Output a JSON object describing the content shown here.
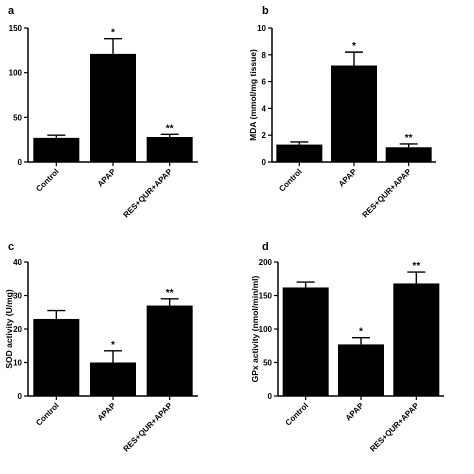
{
  "chart_data": [
    {
      "panel": "a",
      "type": "bar",
      "categories": [
        "Control",
        "APAP",
        "RES+QUR+APAP"
      ],
      "values": [
        27,
        121,
        28
      ],
      "errors": [
        3,
        17,
        3
      ],
      "significance": [
        "",
        "*",
        "**"
      ],
      "ylabel": "",
      "ylim": [
        0,
        150
      ],
      "yticks": [
        "0",
        "50",
        "100",
        "150"
      ]
    },
    {
      "panel": "b",
      "type": "bar",
      "categories": [
        "Control",
        "APAP",
        "RES+QUR+APAP"
      ],
      "values": [
        1.3,
        7.2,
        1.1
      ],
      "errors": [
        0.2,
        1.0,
        0.25
      ],
      "significance": [
        "",
        "*",
        "**"
      ],
      "ylabel": "MDA (mmol/mg tissue)",
      "ylim": [
        0,
        10
      ],
      "yticks": [
        "0",
        "2",
        "4",
        "6",
        "8",
        "10"
      ]
    },
    {
      "panel": "c",
      "type": "bar",
      "categories": [
        "Control",
        "APAP",
        "RES+QUR+APAP"
      ],
      "values": [
        23,
        10,
        27
      ],
      "errors": [
        2.5,
        3.5,
        2
      ],
      "significance": [
        "",
        "*",
        "**"
      ],
      "ylabel": "SOD activity (U/mg)",
      "ylim": [
        0,
        40
      ],
      "yticks": [
        "0",
        "10",
        "20",
        "30",
        "40"
      ]
    },
    {
      "panel": "d",
      "type": "bar",
      "categories": [
        "Control",
        "APAP",
        "RES+QUR+APAP"
      ],
      "values": [
        162,
        77,
        168
      ],
      "errors": [
        8,
        10,
        17
      ],
      "significance": [
        "",
        "*",
        "**"
      ],
      "ylabel": "GPx activity (nmol/min/ml)",
      "ylim": [
        0,
        200
      ],
      "yticks": [
        "0",
        "50",
        "100",
        "150",
        "200"
      ]
    }
  ],
  "colors": {
    "bar": "#000000",
    "axis": "#000000",
    "background": "#ffffff"
  }
}
